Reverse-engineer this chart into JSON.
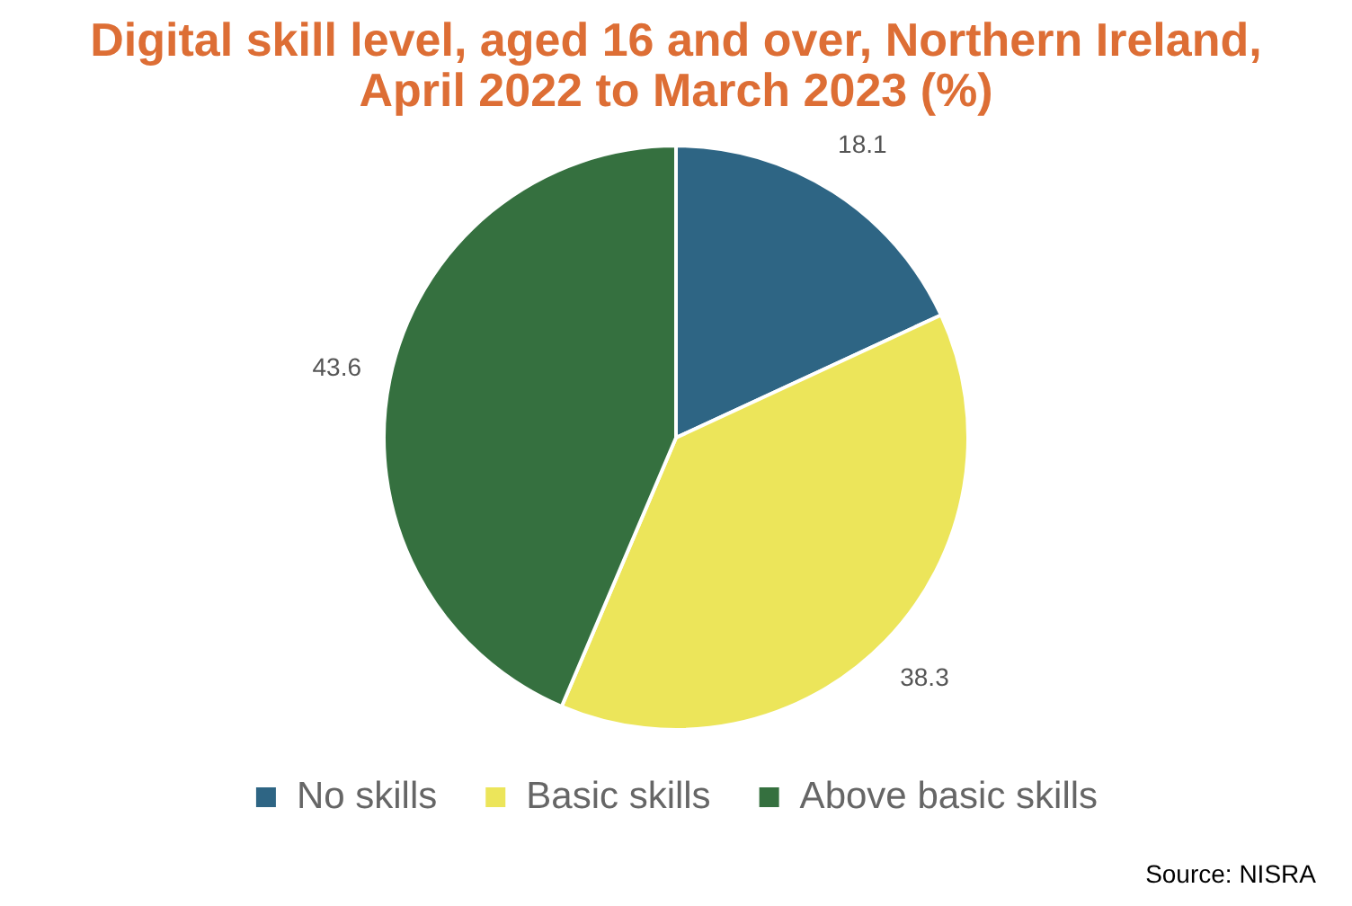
{
  "chart_data": {
    "type": "pie",
    "title": "Digital skill level, aged 16 and over, Northern Ireland, April 2022 to March 2023 (%)",
    "categories": [
      "No skills",
      "Basic skills",
      "Above basic skills"
    ],
    "values": [
      18.1,
      38.3,
      43.6
    ],
    "colors": [
      "#2e6584",
      "#ece55a",
      "#35703f"
    ],
    "data_labels": true,
    "legend": "bottom",
    "annotations": [
      "Source: NISRA"
    ]
  }
}
